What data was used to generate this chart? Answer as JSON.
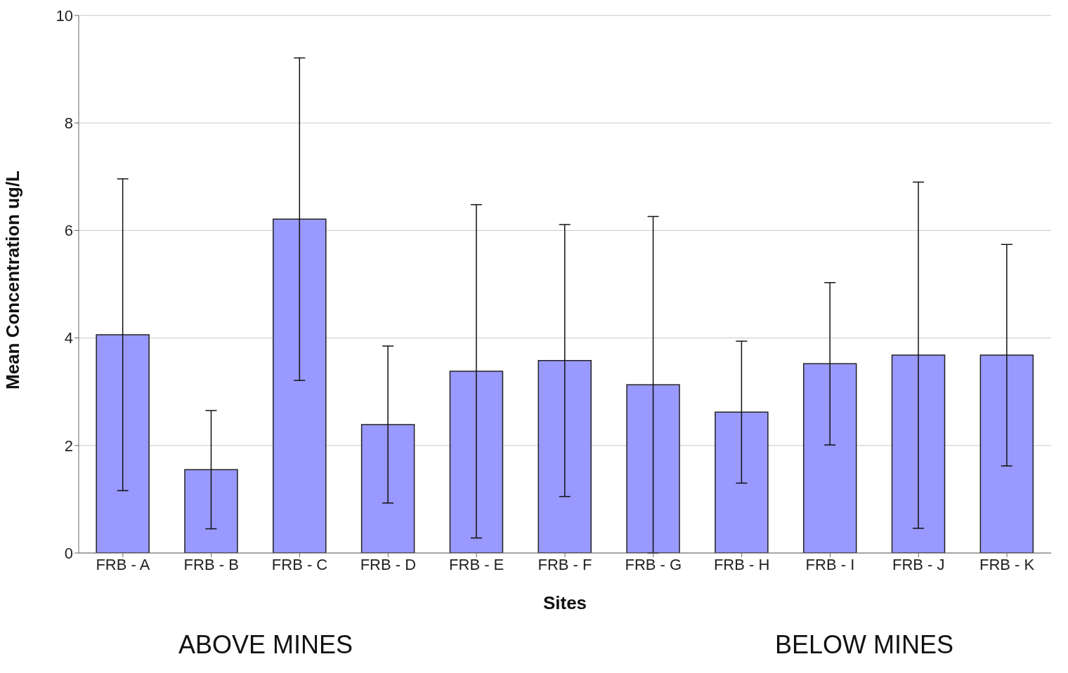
{
  "chart_data": {
    "type": "bar",
    "xlabel": "Sites",
    "ylabel": "Mean Concentration ug/L",
    "categories": [
      "FRB - A",
      "FRB - B",
      "FRB - C",
      "FRB - D",
      "FRB - E",
      "FRB - F",
      "FRB - G",
      "FRB - H",
      "FRB - I",
      "FRB - J",
      "FRB - K"
    ],
    "values": [
      4.06,
      1.55,
      6.21,
      2.39,
      3.38,
      3.58,
      3.13,
      2.62,
      3.52,
      3.68,
      3.68
    ],
    "errors": [
      2.9,
      1.1,
      3.0,
      1.46,
      3.1,
      2.53,
      3.13,
      1.32,
      1.51,
      3.22,
      2.06
    ],
    "color": "#9999ff",
    "ylim": [
      0,
      10
    ],
    "yticks": [
      0,
      2,
      4,
      6,
      8,
      10
    ],
    "grid": "y",
    "annotations": [
      "ABOVE MINES",
      "BELOW MINES"
    ]
  }
}
